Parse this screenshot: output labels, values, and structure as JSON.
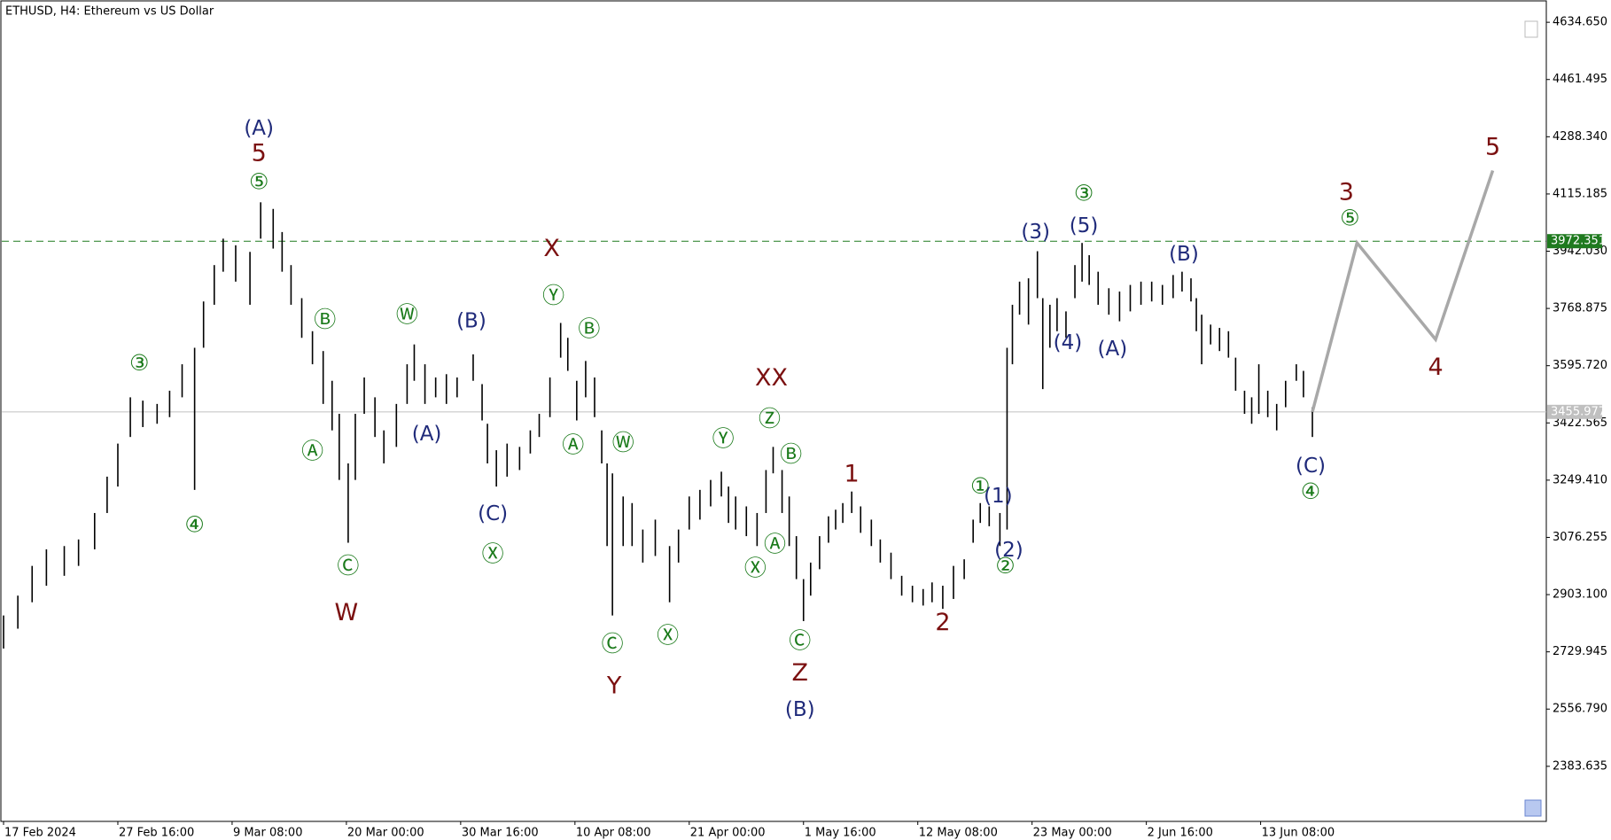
{
  "chart_data": {
    "type": "ohlc",
    "title": "ETHUSD, H4:  Ethereum vs US Dollar",
    "color": "#000000",
    "x": [
      0,
      8,
      16,
      24,
      34,
      42,
      51,
      58,
      64,
      71,
      78,
      86,
      93,
      100,
      107,
      112,
      118,
      123,
      130,
      138,
      144,
      151,
      156,
      161,
      167,
      173,
      179,
      184,
      188,
      193,
      197,
      202,
      208,
      213,
      220,
      226,
      230,
      236,
      242,
      248,
      254,
      263,
      268,
      271,
      276,
      282,
      289,
      295,
      300,
      306,
      312,
      316,
      321,
      326,
      331,
      335,
      338,
      341,
      347,
      352,
      358,
      365,
      373,
      378,
      384,
      390,
      396,
      402,
      406,
      410,
      416,
      422,
      427,
      431,
      436,
      440,
      444,
      448,
      452,
      457,
      462,
      466,
      470,
      475,
      480,
      486,
      491,
      497,
      503,
      509,
      515,
      520,
      526,
      532,
      538,
      543,
      547,
      552,
      558,
      562,
      565,
      569,
      574,
      579,
      582,
      586,
      590,
      595,
      600,
      604,
      608,
      613,
      619,
      625,
      631,
      637,
      643,
      649,
      655,
      660,
      665,
      668,
      671,
      676,
      681,
      686,
      690,
      695,
      699,
      703,
      708,
      713,
      718,
      724,
      728,
      733
    ],
    "high": [
      2840,
      2900,
      2990,
      3040,
      3050,
      3070,
      3150,
      3260,
      3360,
      3500,
      3490,
      3480,
      3520,
      3600,
      3650,
      3790,
      3900,
      3980,
      3960,
      3940,
      4090,
      4070,
      4000,
      3900,
      3800,
      3700,
      3640,
      3550,
      3450,
      3300,
      3450,
      3560,
      3500,
      3400,
      3480,
      3600,
      3660,
      3600,
      3560,
      3570,
      3560,
      3630,
      3540,
      3420,
      3340,
      3360,
      3350,
      3400,
      3450,
      3560,
      3725,
      3680,
      3550,
      3610,
      3560,
      3400,
      3300,
      3270,
      3200,
      3180,
      3100,
      3130,
      3050,
      3100,
      3200,
      3220,
      3250,
      3275,
      3230,
      3200,
      3170,
      3150,
      3280,
      3350,
      3280,
      3200,
      3080,
      2950,
      3000,
      3080,
      3140,
      3160,
      3180,
      3215,
      3170,
      3130,
      3070,
      3030,
      2960,
      2930,
      2920,
      2940,
      2930,
      2990,
      3010,
      3130,
      3180,
      3170,
      3150,
      3650,
      3780,
      3850,
      3860,
      3942,
      3800,
      3780,
      3800,
      3760,
      3900,
      3967,
      3930,
      3880,
      3830,
      3820,
      3840,
      3850,
      3850,
      3840,
      3870,
      3880,
      3860,
      3800,
      3750,
      3720,
      3710,
      3700,
      3620,
      3520,
      3500,
      3600,
      3520,
      3480,
      3550,
      3600,
      3580,
      3470
    ],
    "low": [
      2740,
      2800,
      2880,
      2930,
      2960,
      2990,
      3040,
      3150,
      3230,
      3380,
      3410,
      3420,
      3440,
      3500,
      3220,
      3650,
      3780,
      3880,
      3850,
      3780,
      3980,
      3950,
      3880,
      3780,
      3680,
      3600,
      3480,
      3400,
      3250,
      3060,
      3250,
      3450,
      3380,
      3300,
      3350,
      3480,
      3550,
      3480,
      3500,
      3480,
      3500,
      3550,
      3430,
      3300,
      3230,
      3260,
      3280,
      3330,
      3380,
      3440,
      3620,
      3580,
      3430,
      3500,
      3440,
      3300,
      3050,
      2840,
      3050,
      3050,
      3000,
      3020,
      2880,
      3000,
      3100,
      3130,
      3170,
      3200,
      3120,
      3100,
      3080,
      3050,
      3150,
      3270,
      3150,
      3050,
      2950,
      2823,
      2900,
      2980,
      3060,
      3100,
      3120,
      3150,
      3090,
      3050,
      3000,
      2950,
      2900,
      2880,
      2870,
      2880,
      2860,
      2890,
      2950,
      3060,
      3120,
      3110,
      3050,
      3100,
      3600,
      3750,
      3720,
      3800,
      3525,
      3650,
      3700,
      3680,
      3800,
      3850,
      3840,
      3780,
      3750,
      3730,
      3760,
      3780,
      3790,
      3780,
      3800,
      3820,
      3790,
      3700,
      3600,
      3660,
      3640,
      3620,
      3520,
      3450,
      3420,
      3450,
      3440,
      3400,
      3470,
      3550,
      3500,
      3380
    ],
    "xlim": [
      -1,
      864
    ],
    "xticks": [
      {
        "value": 0,
        "label": "17 Feb 2024"
      },
      {
        "value": 64,
        "label": "27 Feb 16:00"
      },
      {
        "value": 128,
        "label": "9 Mar 08:00"
      },
      {
        "value": 192,
        "label": "20 Mar 00:00"
      },
      {
        "value": 256,
        "label": "30 Mar 16:00"
      },
      {
        "value": 320,
        "label": "10 Apr 08:00"
      },
      {
        "value": 384,
        "label": "21 Apr 00:00"
      },
      {
        "value": 448,
        "label": "1 May 16:00"
      },
      {
        "value": 512,
        "label": "12 May 08:00"
      },
      {
        "value": 576,
        "label": "23 May 00:00"
      },
      {
        "value": 640,
        "label": "2 Jun 16:00"
      },
      {
        "value": 704,
        "label": "13 Jun 08:00"
      }
    ],
    "ylim": [
      2217,
      4694
    ],
    "yticks": [
      {
        "value": 4634.65,
        "label": "4634.650"
      },
      4461.495,
      {
        "value": 4288.34,
        "label": "4288.340"
      },
      4115.185,
      {
        "value": 3942.03,
        "label": "3942.030"
      },
      3768.875,
      {
        "value": 3595.72,
        "label": "3595.720"
      },
      3422.565,
      {
        "value": 3249.41,
        "label": "3249.410"
      },
      3076.255,
      {
        "value": 2903.1,
        "label": "2903.100"
      },
      2729.945,
      {
        "value": 2556.79,
        "label": "2556.790"
      },
      2383.635
    ],
    "levels": [
      {
        "value": 3972.351,
        "color": "#1f7a1f",
        "dashed": true
      },
      {
        "value": 3455.977,
        "color": "#c0c0c0",
        "dashed": false
      }
    ],
    "projection": {
      "x": [
        733,
        758,
        802,
        834
      ],
      "y": [
        3455.977,
        3967,
        3675,
        4186
      ],
      "color": "#a8a8a8"
    },
    "annotations": [
      {
        "text": "(A)",
        "x": 143,
        "y": 4312,
        "color": "#1f2a7a"
      },
      {
        "text": "5",
        "x": 143,
        "y": 4236,
        "color": "#7b1010"
      },
      {
        "text": "⑤",
        "x": 143,
        "y": 4149,
        "color": "#1a7a1a"
      },
      {
        "text": "③",
        "x": 76,
        "y": 3600,
        "color": "#1a7a1a"
      },
      {
        "text": "④",
        "x": 107,
        "y": 3111,
        "color": "#1a7a1a"
      },
      {
        "text": "Ⓑ",
        "x": 180,
        "y": 3732,
        "color": "#1a7a1a"
      },
      {
        "text": "Ⓐ",
        "x": 173,
        "y": 3334,
        "color": "#1a7a1a"
      },
      {
        "text": "Ⓒ",
        "x": 193,
        "y": 2986,
        "color": "#1a7a1a"
      },
      {
        "text": "W",
        "x": 192,
        "y": 2845,
        "color": "#7b1010"
      },
      {
        "text": "Ⓦ",
        "x": 226,
        "y": 3747,
        "color": "#1a7a1a"
      },
      {
        "text": "(A)",
        "x": 237,
        "y": 3387,
        "color": "#1f2a7a"
      },
      {
        "text": "(B)",
        "x": 262,
        "y": 3729,
        "color": "#1f2a7a"
      },
      {
        "text": "(C)",
        "x": 274,
        "y": 3146,
        "color": "#1f2a7a"
      },
      {
        "text": "Ⓧ",
        "x": 274,
        "y": 3023,
        "color": "#1a7a1a"
      },
      {
        "text": "X",
        "x": 307,
        "y": 3948,
        "color": "#7b1010"
      },
      {
        "text": "Ⓨ",
        "x": 308,
        "y": 3804,
        "color": "#1a7a1a"
      },
      {
        "text": "Ⓑ",
        "x": 328,
        "y": 3704,
        "color": "#1a7a1a"
      },
      {
        "text": "Ⓐ",
        "x": 319,
        "y": 3352,
        "color": "#1a7a1a"
      },
      {
        "text": "Ⓦ",
        "x": 347,
        "y": 3359,
        "color": "#1a7a1a"
      },
      {
        "text": "Ⓒ",
        "x": 341,
        "y": 2751,
        "color": "#1a7a1a"
      },
      {
        "text": "Y",
        "x": 342,
        "y": 2625,
        "color": "#7b1010"
      },
      {
        "text": "Ⓧ",
        "x": 372,
        "y": 2776,
        "color": "#1a7a1a"
      },
      {
        "text": "Ⓨ",
        "x": 403,
        "y": 3371,
        "color": "#1a7a1a"
      },
      {
        "text": "XX",
        "x": 430,
        "y": 3556,
        "color": "#7b1010"
      },
      {
        "text": "Ⓩ",
        "x": 429,
        "y": 3431,
        "color": "#1a7a1a"
      },
      {
        "text": "Ⓑ",
        "x": 441,
        "y": 3324,
        "color": "#1a7a1a"
      },
      {
        "text": "Ⓐ",
        "x": 432,
        "y": 3052,
        "color": "#1a7a1a"
      },
      {
        "text": "Ⓧ",
        "x": 421,
        "y": 2979,
        "color": "#1a7a1a"
      },
      {
        "text": "Ⓒ",
        "x": 446,
        "y": 2760,
        "color": "#1a7a1a"
      },
      {
        "text": "Z",
        "x": 446,
        "y": 2663,
        "color": "#7b1010"
      },
      {
        "text": "(B)",
        "x": 446,
        "y": 2553,
        "color": "#1f2a7a"
      },
      {
        "text": "1",
        "x": 475,
        "y": 3265,
        "color": "#7b1010"
      },
      {
        "text": "2",
        "x": 526,
        "y": 2816,
        "color": "#7b1010"
      },
      {
        "text": "①",
        "x": 547,
        "y": 3227,
        "color": "#1a7a1a"
      },
      {
        "text": "(1)",
        "x": 557,
        "y": 3199,
        "color": "#1f2a7a"
      },
      {
        "text": "(2)",
        "x": 563,
        "y": 3036,
        "color": "#1f2a7a"
      },
      {
        "text": "②",
        "x": 561,
        "y": 2986,
        "color": "#1a7a1a"
      },
      {
        "text": "(3)",
        "x": 578,
        "y": 3998,
        "color": "#1f2a7a"
      },
      {
        "text": "③",
        "x": 605,
        "y": 4114,
        "color": "#1a7a1a"
      },
      {
        "text": "(5)",
        "x": 605,
        "y": 4017,
        "color": "#1f2a7a"
      },
      {
        "text": "(4)",
        "x": 596,
        "y": 3663,
        "color": "#1f2a7a"
      },
      {
        "text": "(A)",
        "x": 621,
        "y": 3644,
        "color": "#1f2a7a"
      },
      {
        "text": "(B)",
        "x": 661,
        "y": 3932,
        "color": "#1f2a7a"
      },
      {
        "text": "(C)",
        "x": 732,
        "y": 3290,
        "color": "#1f2a7a"
      },
      {
        "text": "④",
        "x": 732,
        "y": 3211,
        "color": "#1a7a1a"
      },
      {
        "text": "3",
        "x": 752,
        "y": 4117,
        "color": "#7b1010"
      },
      {
        "text": "⑤",
        "x": 754,
        "y": 4039,
        "color": "#1a7a1a"
      },
      {
        "text": "4",
        "x": 802,
        "y": 3588,
        "color": "#7b1010"
      },
      {
        "text": "5",
        "x": 834,
        "y": 4255,
        "color": "#7b1010"
      }
    ]
  }
}
